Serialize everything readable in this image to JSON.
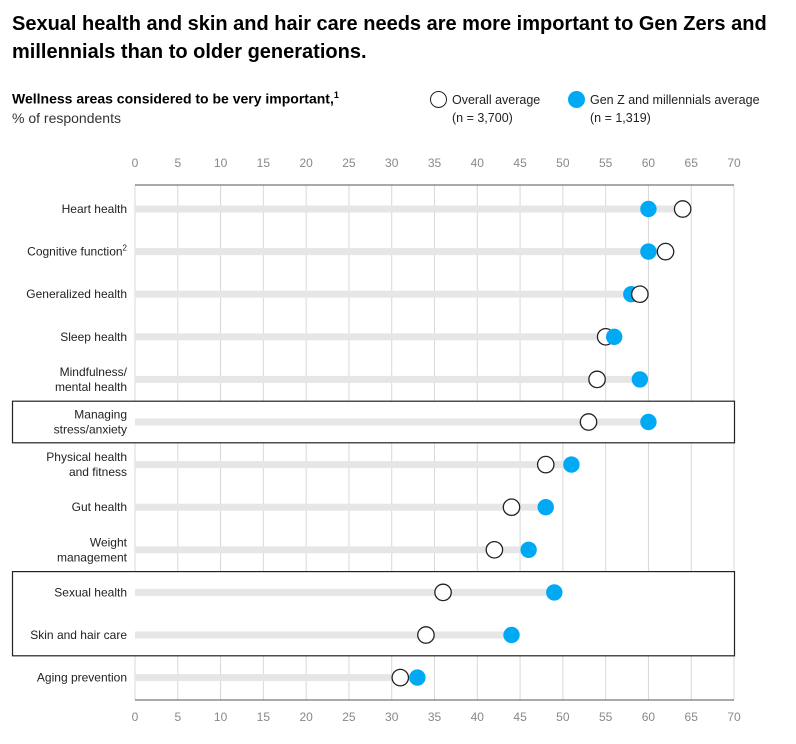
{
  "title": "Sexual health and skin and hair care needs are more important to Gen Zers and millennials than to older generations.",
  "subtitle": "Wellness areas considered to be very important,",
  "subtitle_footnote": "1",
  "unit": "% of respondents",
  "legend": [
    {
      "line1": "Overall average",
      "line2": "(n = 3,700)",
      "color": "#ffffff",
      "border": "#222222"
    },
    {
      "line1": "Gen Z and millennials average",
      "line2": "(n = 1,319)",
      "color": "#00a9f4",
      "border": "#00a9f4"
    }
  ],
  "chart_data": {
    "type": "dot",
    "xlim": [
      0,
      70
    ],
    "xticks": [
      0,
      5,
      10,
      15,
      20,
      25,
      30,
      35,
      40,
      45,
      50,
      55,
      60,
      65,
      70
    ],
    "grid": true,
    "legend_position": "top-right",
    "categories": [
      {
        "lines": [
          "Heart health"
        ],
        "footnote": ""
      },
      {
        "lines": [
          "Cognitive function"
        ],
        "footnote": "2"
      },
      {
        "lines": [
          "Generalized health"
        ],
        "footnote": ""
      },
      {
        "lines": [
          "Sleep health"
        ],
        "footnote": ""
      },
      {
        "lines": [
          "Mindfulness/",
          "mental health"
        ],
        "footnote": ""
      },
      {
        "lines": [
          "Managing",
          "stress/anxiety"
        ],
        "footnote": ""
      },
      {
        "lines": [
          "Physical health",
          "and fitness"
        ],
        "footnote": ""
      },
      {
        "lines": [
          "Gut health"
        ],
        "footnote": ""
      },
      {
        "lines": [
          "Weight",
          "management"
        ],
        "footnote": ""
      },
      {
        "lines": [
          "Sexual health"
        ],
        "footnote": ""
      },
      {
        "lines": [
          "Skin and hair care"
        ],
        "footnote": ""
      },
      {
        "lines": [
          "Aging prevention"
        ],
        "footnote": ""
      }
    ],
    "series": [
      {
        "name": "Overall average",
        "values": [
          64,
          62,
          59,
          55,
          54,
          53,
          48,
          44,
          42,
          36,
          34,
          31
        ]
      },
      {
        "name": "Gen Z and millennials average",
        "values": [
          60,
          60,
          58,
          56,
          59,
          60,
          51,
          48,
          46,
          49,
          44,
          33
        ]
      }
    ],
    "highlight_groups": [
      [
        5,
        5
      ],
      [
        9,
        10
      ]
    ],
    "colors": {
      "overall_fill": "#ffffff",
      "overall_stroke": "#222222",
      "genz": "#00a9f4",
      "bar": "#e6e6e6",
      "grid": "#d8d8d8",
      "box": "#222222"
    }
  }
}
